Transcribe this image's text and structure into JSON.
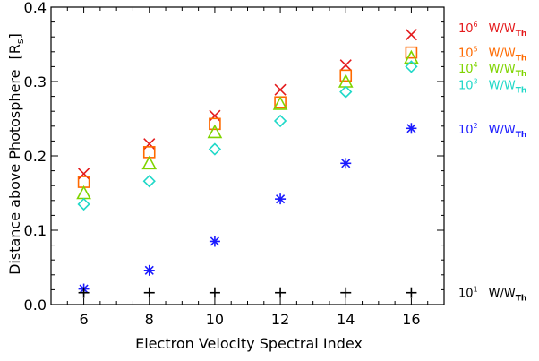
{
  "chart_data": {
    "type": "scatter",
    "title": "",
    "xlabel": "Electron Velocity Spectral Index",
    "ylabel_main": "Distance above Photosphere",
    "ylabel_unit": "[R",
    "ylabel_unit_sub": "s",
    "ylabel_unit_close": "]",
    "xlim": [
      5,
      17
    ],
    "ylim": [
      0,
      0.4
    ],
    "x_ticks": [
      6,
      8,
      10,
      12,
      14,
      16
    ],
    "x_tick_labels": [
      "6",
      "8",
      "10",
      "12",
      "14",
      "16"
    ],
    "y_ticks": [
      0,
      0.1,
      0.2,
      0.3,
      0.4
    ],
    "y_tick_labels": [
      "0.0",
      "0.1",
      "0.2",
      "0.3",
      "0.4"
    ],
    "x": [
      6,
      8,
      10,
      12,
      14,
      16
    ],
    "series": [
      {
        "id": "1e6",
        "marker": "x",
        "color": "#e41a1c",
        "values": [
          0.176,
          0.216,
          0.254,
          0.289,
          0.322,
          0.363
        ],
        "legend_base": "10",
        "legend_exp": "6",
        "legend_text": "W/W",
        "legend_sub": "Th",
        "legend_y": 0.372
      },
      {
        "id": "1e5",
        "marker": "square",
        "color": "#ff6a00",
        "values": [
          0.165,
          0.205,
          0.243,
          0.272,
          0.308,
          0.339
        ],
        "legend_base": "10",
        "legend_exp": "5",
        "legend_text": "W/W",
        "legend_sub": "Th",
        "legend_y": 0.339
      },
      {
        "id": "1e4",
        "marker": "triangle",
        "color": "#7fd400",
        "values": [
          0.15,
          0.19,
          0.232,
          0.27,
          0.3,
          0.332
        ],
        "legend_base": "10",
        "legend_exp": "4",
        "legend_text": "W/W",
        "legend_sub": "Th",
        "legend_y": 0.318
      },
      {
        "id": "1e3",
        "marker": "diamond",
        "color": "#20d8c8",
        "values": [
          0.135,
          0.166,
          0.209,
          0.247,
          0.286,
          0.32
        ],
        "legend_base": "10",
        "legend_exp": "3",
        "legend_text": "W/W",
        "legend_sub": "Th",
        "legend_y": 0.296
      },
      {
        "id": "1e2",
        "marker": "asterisk",
        "color": "#1a1aff",
        "values": [
          0.021,
          0.046,
          0.085,
          0.142,
          0.19,
          0.237
        ],
        "legend_base": "10",
        "legend_exp": "2",
        "legend_text": "W/W",
        "legend_sub": "Th",
        "legend_y": 0.236
      },
      {
        "id": "1e1",
        "marker": "plus",
        "color": "#000000",
        "values": [
          0.016,
          0.016,
          0.016,
          0.016,
          0.016,
          0.016
        ],
        "legend_base": "10",
        "legend_exp": "1",
        "legend_text": "W/W",
        "legend_sub": "Th",
        "legend_y": 0.016
      }
    ]
  }
}
